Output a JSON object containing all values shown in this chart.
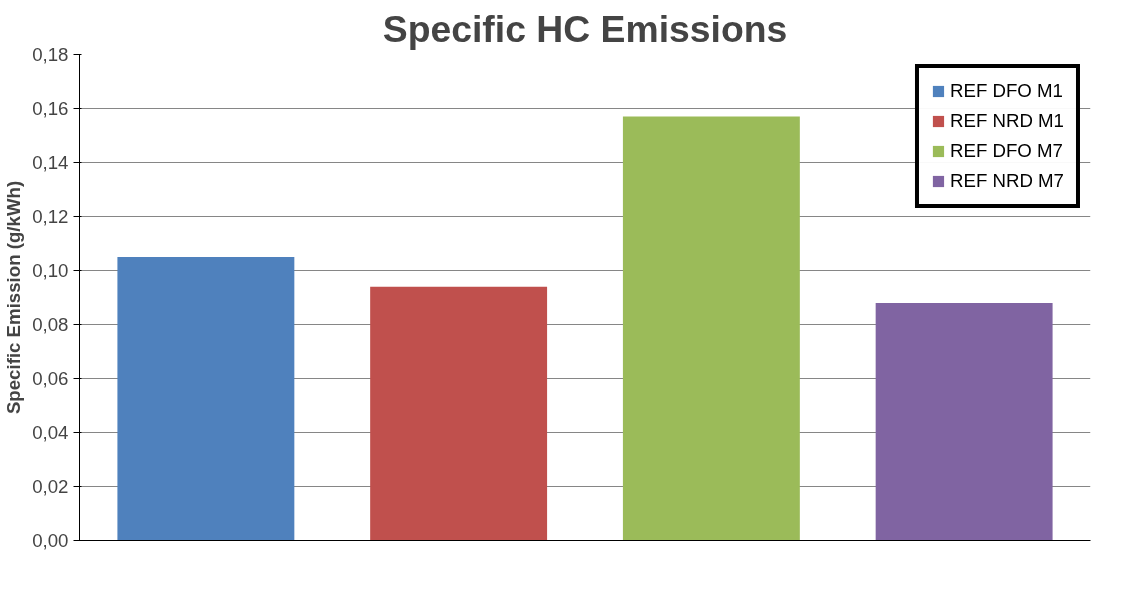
{
  "chart_data": {
    "type": "bar",
    "title": "Specific HC Emissions",
    "ylabel": "Specific Emission (g/kWh)",
    "categories": [
      null
    ],
    "series": [
      {
        "name": "REF DFO M1",
        "color": "#4f81bd",
        "values": [
          0.105
        ]
      },
      {
        "name": "REF NRD M1",
        "color": "#c0504d",
        "values": [
          0.094
        ]
      },
      {
        "name": "REF DFO M7",
        "color": "#9bbb59",
        "values": [
          0.157
        ]
      },
      {
        "name": "REF NRD M7",
        "color": "#8064a2",
        "values": [
          0.088
        ]
      }
    ],
    "ylim": [
      0,
      0.18
    ],
    "yticks": [
      {
        "value": 0,
        "label": "0,00"
      },
      {
        "value": 0.02,
        "label": "0,02"
      },
      {
        "value": 0.04,
        "label": "0,04"
      },
      {
        "value": 0.06,
        "label": "0,06"
      },
      {
        "value": 0.08,
        "label": "0,08"
      },
      {
        "value": 0.1,
        "label": "0,10"
      },
      {
        "value": 0.12,
        "label": "0,12"
      },
      {
        "value": 0.14,
        "label": "0,14"
      },
      {
        "value": 0.16,
        "label": "0,16"
      },
      {
        "value": 0.18,
        "label": "0,18"
      }
    ],
    "grid": "y",
    "legend": "top right"
  }
}
